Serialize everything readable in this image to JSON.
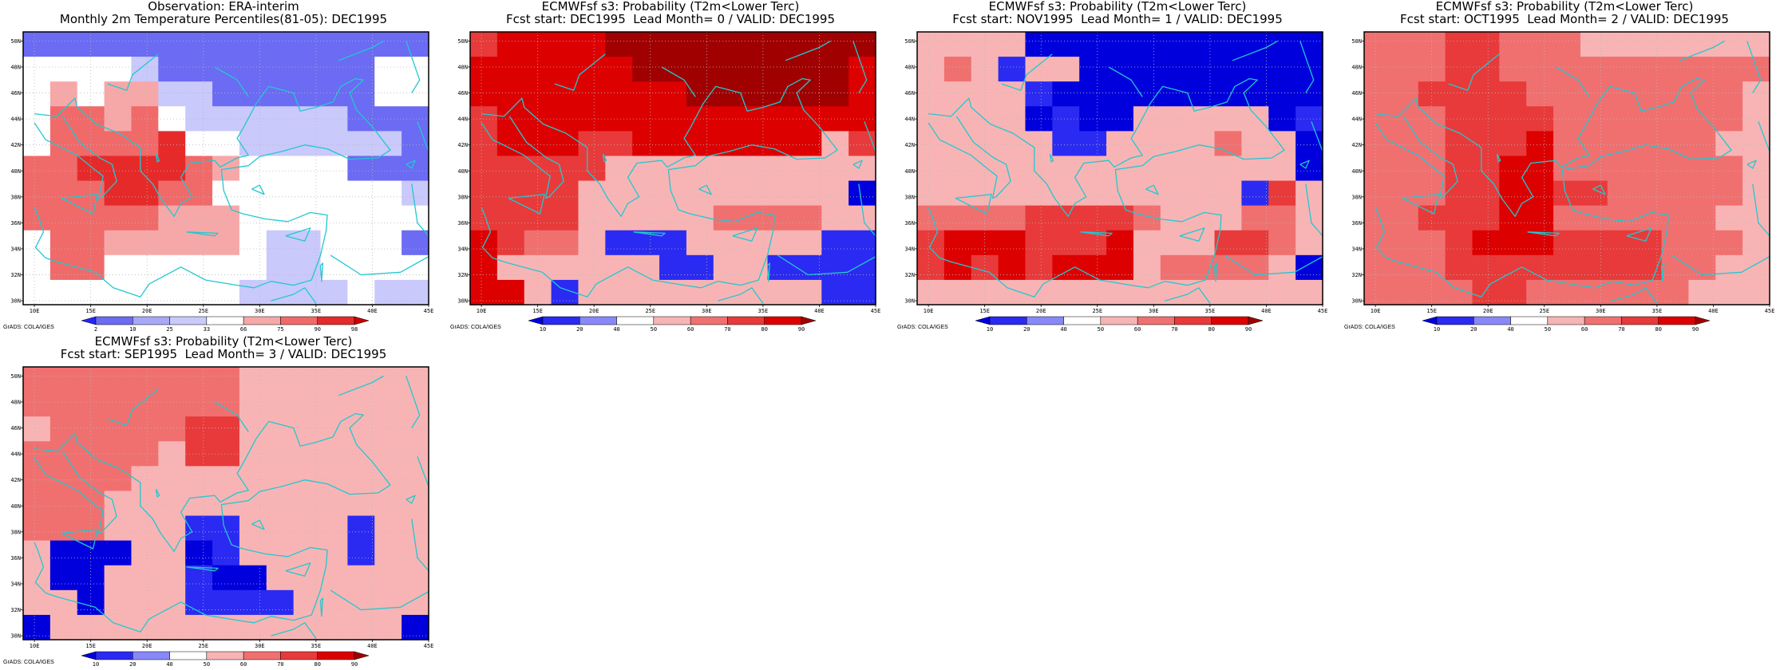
{
  "grads_label": "GrADS: COLA/IGES",
  "chart_data": [
    {
      "type": "heatmap",
      "title": "Observation: ERA-interim",
      "subtitle": "Monthly 2m Temperature Percentiles(81-05): DEC1995",
      "x_ticks": [
        "10E",
        "15E",
        "20E",
        "25E",
        "30E",
        "35E",
        "40E",
        "45E"
      ],
      "y_ticks": [
        "30N",
        "32N",
        "34N",
        "36N",
        "38N",
        "40N",
        "42N",
        "44N",
        "46N",
        "48N",
        "50N"
      ],
      "colorbar_ticks": [
        "2",
        "10",
        "25",
        "33",
        "66",
        "75",
        "90",
        "98"
      ],
      "legend_colors": [
        "#2626f0",
        "#6b6bf3",
        "#a8a8f8",
        "#c9c9fb",
        "#ffffff",
        "#f6a8a8",
        "#f06a6a",
        "#e62a2a",
        "#cc0000"
      ],
      "grid": [
        "BBBBBBBBBBBBBBB",
        "WWWWLBBBBBBBBWW",
        "WPWPPLLBBBBBBWW",
        "WrrPrWLLLLLLBBB",
        "WrrrrRWWLLLLLLB",
        "rrRRRRrPWWWWBBB",
        "rrrRRrrWWWWWWWL",
        "rrrrrPPPWWWWWWW",
        "WrrPPPPPWLLWWWB",
        "WrrWWWWWWLLWWWW",
        "WWWWWWWWLLLLWLL"
      ]
    },
    {
      "type": "heatmap",
      "title": "ECMWFsf s3: Probability (T2m<Lower Terc)",
      "subtitle": "Fcst start: DEC1995  Lead Month= 0 / VALID: DEC1995",
      "x_ticks": [
        "10E",
        "15E",
        "20E",
        "25E",
        "30E",
        "35E",
        "40E",
        "45E"
      ],
      "y_ticks": [
        "30N",
        "32N",
        "34N",
        "36N",
        "38N",
        "40N",
        "42N",
        "44N",
        "46N",
        "48N",
        "50N"
      ],
      "colorbar_ticks": [
        "10",
        "20",
        "40",
        "50",
        "60",
        "70",
        "80",
        "90"
      ],
      "legend_colors": [
        "#0000dd",
        "#2a2af2",
        "#8888f8",
        "#ffffff",
        "#f8b4b4",
        "#f07070",
        "#e83a3a",
        "#dd0000",
        "#a00000"
      ],
      "grid": [
        "rRRRRKKKKKKKKKK",
        "RRRRRRKKKKKKKKR",
        "RRRRRRRRKKKKKKR",
        "rRRRRRRRRRRRRRR",
        "rRRRrrRRRRRRRWr",
        "rrrrrWWWWWWWWWW",
        "rrrrWWWWWWWWWWb",
        "rrrrWWWWWPPPPWW",
        "RrPPWBBBWWWWWBB",
        "RWWWWWWBBWWBBBB",
        "RRWBWWWWWWWWWBB"
      ]
    },
    {
      "type": "heatmap",
      "title": "ECMWFsf s3: Probability (T2m<Lower Terc)",
      "subtitle": "Fcst start: NOV1995  Lead Month= 1 / VALID: DEC1995",
      "x_ticks": [
        "10E",
        "15E",
        "20E",
        "25E",
        "30E",
        "35E",
        "40E",
        "45E"
      ],
      "y_ticks": [
        "30N",
        "32N",
        "34N",
        "36N",
        "38N",
        "40N",
        "42N",
        "44N",
        "46N",
        "48N",
        "50N"
      ],
      "colorbar_ticks": [
        "10",
        "20",
        "40",
        "50",
        "60",
        "70",
        "80",
        "90"
      ],
      "legend_colors": [
        "#0000dd",
        "#2a2af2",
        "#8888f8",
        "#ffffff",
        "#f8b4b4",
        "#f07070",
        "#e83a3a",
        "#dd0000",
        "#a00000"
      ],
      "grid": [
        "WWWWbbbbbbbbbbb",
        "WPWBWWbbbbbbbbb",
        "WWWWBbbbbbbbbbb",
        "WWWWbBbbWWWWWbB",
        "WWWWWBBWWWWPWWb",
        "WWWWWWWWWWWWWWb",
        "WWWWWWWWWWWWBrW",
        "PPPPrrrrPWWWPPW",
        "rRRRrrrRWWWrrPW",
        "rRrRrRRRWPPPPWb",
        "WWWWWWWWWWWWWWW"
      ]
    },
    {
      "type": "heatmap",
      "title": "ECMWFsf s3: Probability (T2m<Lower Terc)",
      "subtitle": "Fcst start: OCT1995  Lead Month= 2 / VALID: DEC1995",
      "x_ticks": [
        "10E",
        "15E",
        "20E",
        "25E",
        "30E",
        "35E",
        "40E",
        "45E"
      ],
      "y_ticks": [
        "30N",
        "32N",
        "34N",
        "36N",
        "38N",
        "40N",
        "42N",
        "44N",
        "46N",
        "48N",
        "50N"
      ],
      "colorbar_ticks": [
        "10",
        "20",
        "40",
        "50",
        "60",
        "70",
        "80",
        "90"
      ],
      "legend_colors": [
        "#0000dd",
        "#2a2af2",
        "#8888f8",
        "#ffffff",
        "#f8b4b4",
        "#f07070",
        "#e83a3a",
        "#dd0000",
        "#a00000"
      ],
      "grid": [
        "PPPrrPPPWWWWWWW",
        "PPPrrPPPPPPPPPP",
        "PPrrrrPPPPPPPPW",
        "PPPrrrrPPPPPPPW",
        "PPPrrrRPPPPPPWW",
        "PPPrrRRPPPPPPPW",
        "PPPrrRRrrPPPPPW",
        "PPrrrRRPPPPPPWW",
        "PPPrRRRrrrrPPPW",
        "PPPrrrrrrrrPPWW",
        "PPPPrrPPPPPPWWW"
      ]
    },
    {
      "type": "heatmap",
      "title": "ECMWFsf s3: Probability (T2m<Lower Terc)",
      "subtitle": "Fcst start: SEP1995  Lead Month= 3 / VALID: DEC1995",
      "x_ticks": [
        "10E",
        "15E",
        "20E",
        "25E",
        "30E",
        "35E",
        "40E",
        "45E"
      ],
      "y_ticks": [
        "30N",
        "32N",
        "34N",
        "36N",
        "38N",
        "40N",
        "42N",
        "44N",
        "46N",
        "48N",
        "50N"
      ],
      "colorbar_ticks": [
        "10",
        "20",
        "40",
        "50",
        "60",
        "70",
        "80",
        "90"
      ],
      "legend_colors": [
        "#0000dd",
        "#2a2af2",
        "#8888f8",
        "#ffffff",
        "#f8b4b4",
        "#f07070",
        "#e83a3a",
        "#dd0000",
        "#a00000"
      ],
      "grid": [
        "PPPPPPPPWWWWWWW",
        "PPPPPPPPWWWWWWW",
        "WPPPPPrrWWWWWWW",
        "PPPPPWrrWWWWWWW",
        "PPPPWWWWWWWWWWW",
        "PPPWWWWWWWWWWWW",
        "PPPWWWBBWWWWBWW",
        "WbbbWWbBWWWWBWW",
        "WbbWWWBbbWWWWWW",
        "WWbWWWBBBBWWWWW",
        "bWWWWWWWWWWWWWb"
      ]
    }
  ]
}
